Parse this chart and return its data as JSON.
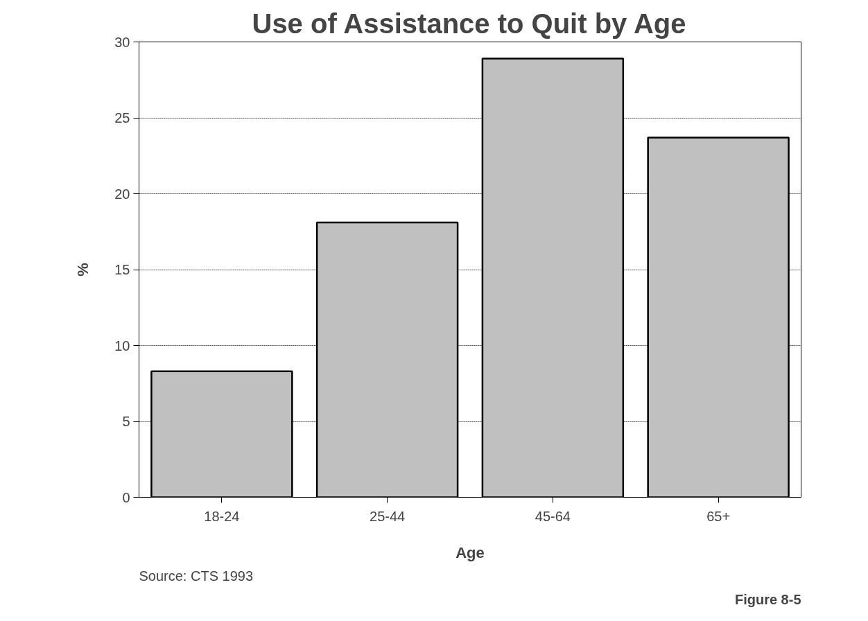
{
  "chart_data": {
    "type": "bar",
    "title": "Use of Assistance to Quit by Age",
    "xlabel": "Age",
    "ylabel": "%",
    "categories": [
      "18-24",
      "25-44",
      "45-64",
      "65+"
    ],
    "values": [
      8.3,
      18.1,
      28.9,
      23.7
    ],
    "color": "#c0c0c0",
    "ylim": [
      0,
      30
    ],
    "yticks": [
      0,
      5,
      10,
      15,
      20,
      25,
      30
    ],
    "grid": "y",
    "annotations": [
      "Source: CTS 1993",
      "Figure 8-5"
    ]
  }
}
